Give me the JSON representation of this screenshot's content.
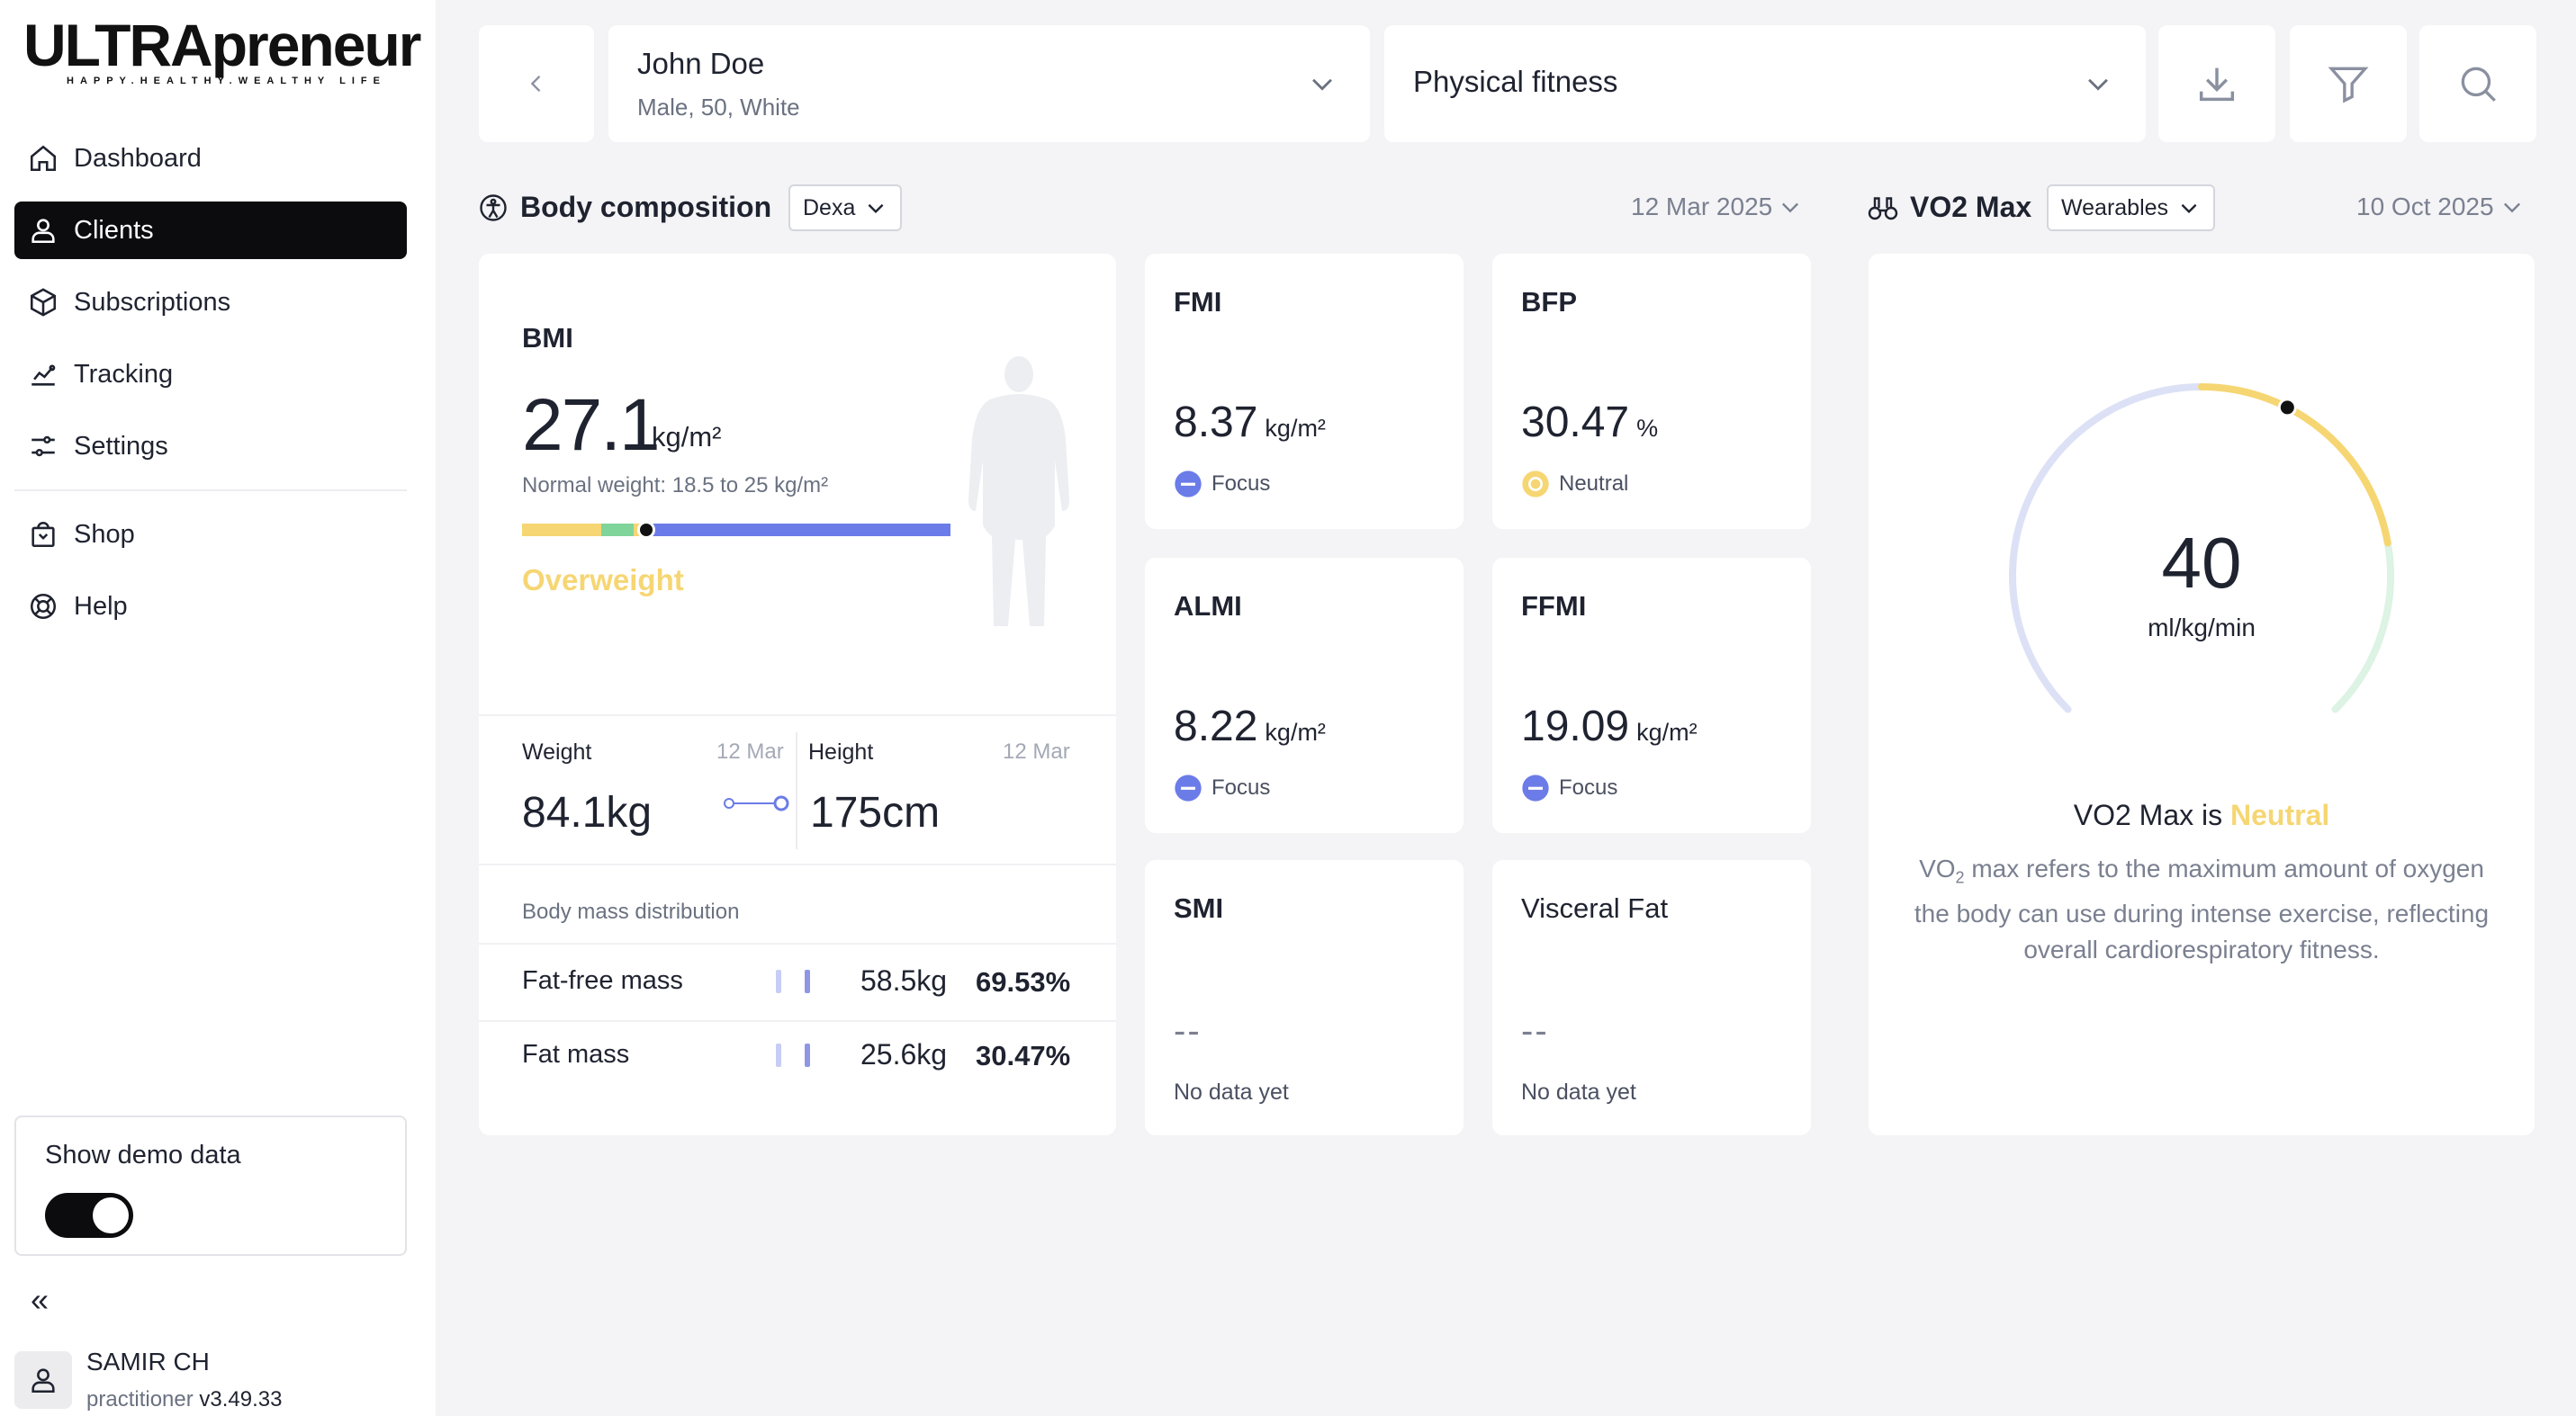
{
  "brand": {
    "name": "ULTRApreneur",
    "tagline": "HAPPY.HEALTHY.WEALTHY LIFE"
  },
  "sidebar": {
    "items": [
      {
        "label": "Dashboard",
        "icon": "home-icon"
      },
      {
        "label": "Clients",
        "icon": "user-icon",
        "active": true
      },
      {
        "label": "Subscriptions",
        "icon": "box-icon"
      },
      {
        "label": "Tracking",
        "icon": "tracking-icon"
      },
      {
        "label": "Settings",
        "icon": "sliders-icon"
      },
      {
        "label": "Shop",
        "icon": "bag-icon"
      },
      {
        "label": "Help",
        "icon": "lifebuoy-icon"
      }
    ],
    "demo_label": "Show demo data",
    "demo_on": true,
    "collapse_glyph": "«",
    "user": {
      "name": "SAMIR CH",
      "role": "practitioner",
      "version": "v3.49.33"
    }
  },
  "header": {
    "client_name": "John Doe",
    "client_meta": "Male, 50, White",
    "category": "Physical fitness"
  },
  "body_comp": {
    "title": "Body composition",
    "source": "Dexa",
    "date": "12 Mar 2025",
    "bmi": {
      "title": "BMI",
      "value": "27.1",
      "unit": "kg/m²",
      "normal": "Normal weight: 18.5 to 25 kg/m²",
      "status": "Overweight",
      "marker_position": 0.29
    },
    "weight": {
      "label": "Weight",
      "date": "12 Mar",
      "value": "84.1kg"
    },
    "height": {
      "label": "Height",
      "date": "12 Mar",
      "value": "175cm"
    },
    "distribution": {
      "title": "Body mass distribution",
      "rows": [
        {
          "label": "Fat-free mass",
          "kg": "58.5kg",
          "pct": "69.53%"
        },
        {
          "label": "Fat mass",
          "kg": "25.6kg",
          "pct": "30.47%"
        }
      ]
    },
    "metrics": [
      {
        "title": "FMI",
        "value": "8.37",
        "unit": "kg/m²",
        "status": "Focus"
      },
      {
        "title": "BFP",
        "value": "30.47",
        "unit": "%",
        "status": "Neutral"
      },
      {
        "title": "ALMI",
        "value": "8.22",
        "unit": "kg/m²",
        "status": "Focus"
      },
      {
        "title": "FFMI",
        "value": "19.09",
        "unit": "kg/m²",
        "status": "Focus"
      },
      {
        "title": "SMI",
        "value": "--",
        "nodata": "No data yet"
      },
      {
        "title": "Visceral Fat",
        "value": "--",
        "nodata": "No data yet"
      }
    ]
  },
  "vo2": {
    "title": "VO2 Max",
    "source": "Wearables",
    "date": "10 Oct 2025",
    "value": "40",
    "unit": "ml/kg/min",
    "status_prefix": "VO2 Max is",
    "status": "Neutral",
    "desc_pre": "VO",
    "desc_sub": "2",
    "desc_post": " max refers to the maximum amount of oxygen the body can use during intense exercise, reflecting overall cardiorespiratory fitness.",
    "gauge_fraction": 0.6
  },
  "colors": {
    "accent_dark": "#0c0c0f",
    "focus": "#6b7ce8",
    "neutral": "#f6d673",
    "good": "#7fd49a"
  }
}
